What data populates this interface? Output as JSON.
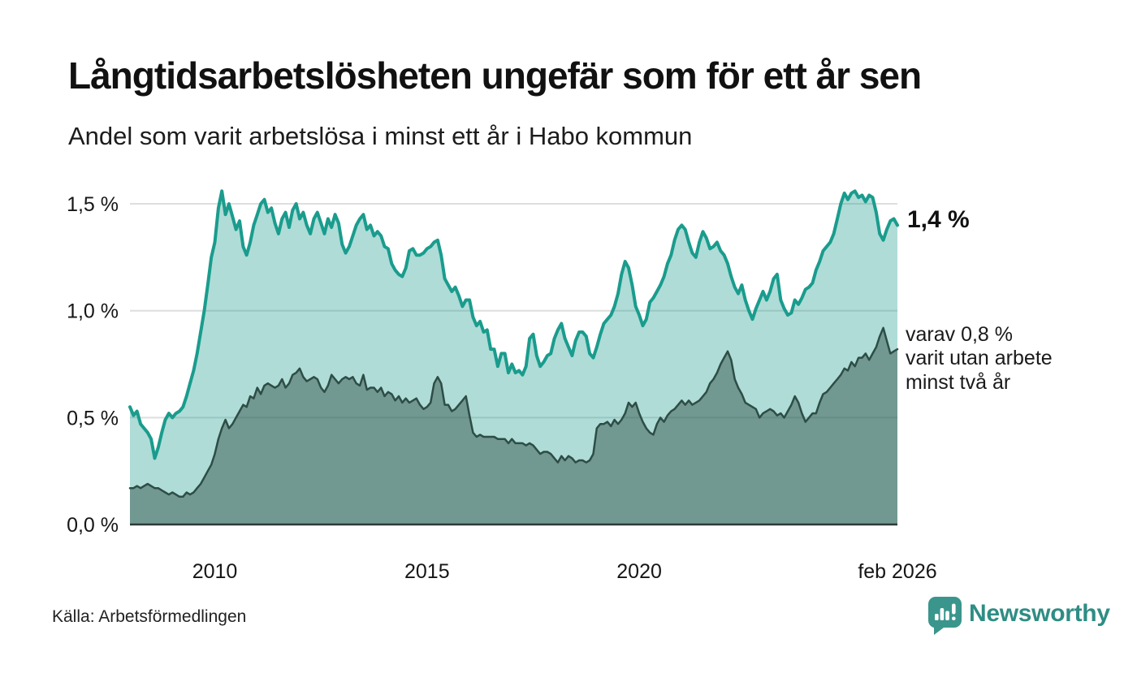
{
  "header": {
    "title": "Långtidsarbetslösheten ungefär som för ett år sen",
    "subtitle": "Andel som varit arbetslösa i minst ett år i Habo kommun"
  },
  "annotations": {
    "latest_total_label": "1,4 %",
    "latest_sub_line1": "varav 0,8 %",
    "latest_sub_line2": "varit utan arbete",
    "latest_sub_line3": "minst två år"
  },
  "footer": {
    "source": "Källa: Arbetsförmedlingen",
    "brand_name": "Newsworthy",
    "brand_logo_icon": "speech-bubble-bar-chart-exclamation"
  },
  "colors": {
    "background": "#ffffff",
    "gridline": "#dedede",
    "axis": "#2c3a35",
    "tick_label": "#161616",
    "line_one_year": "#1a9c8d",
    "fill_one_year": "rgba(26,156,141,0.35)",
    "line_two_years": "#2d4d46",
    "fill_two_years": "rgba(45,77,70,0.48)",
    "brand_teal": "#2e8d84",
    "logo_mark_teal": "#3a968c"
  },
  "chart_data": {
    "type": "area",
    "title": "Långtidsarbetslösheten ungefär som för ett år sen",
    "subtitle": "Andel som varit arbetslösa i minst ett år i Habo kommun",
    "x_start": "2008-01",
    "x_end": "2026-02",
    "x_frequency": "monthly",
    "ylim": [
      0,
      1.6
    ],
    "grid": true,
    "y_ticks": [
      {
        "label": "0,0 %",
        "value": 0.0
      },
      {
        "label": "0,5 %",
        "value": 0.5
      },
      {
        "label": "1,0 %",
        "value": 1.0
      },
      {
        "label": "1,5 %",
        "value": 1.5
      }
    ],
    "x_ticks": [
      {
        "label": "2010",
        "month_index": 24
      },
      {
        "label": "2015",
        "month_index": 84
      },
      {
        "label": "2020",
        "month_index": 144
      },
      {
        "label": "feb 2026",
        "month_index": 217
      }
    ],
    "latest": {
      "one_year_pct": 1.4,
      "two_years_pct": 0.8,
      "latest_month": "feb 2026"
    },
    "series": [
      {
        "name": "Andel arbetslösa minst ett år",
        "color": "#1a9c8d",
        "fill": "rgba(26,156,141,0.35)",
        "stroke_width": 4,
        "values": [
          0.55,
          0.51,
          0.53,
          0.47,
          0.45,
          0.43,
          0.4,
          0.31,
          0.36,
          0.43,
          0.49,
          0.52,
          0.5,
          0.52,
          0.53,
          0.55,
          0.6,
          0.66,
          0.72,
          0.8,
          0.9,
          1.0,
          1.12,
          1.25,
          1.32,
          1.48,
          1.56,
          1.45,
          1.5,
          1.44,
          1.38,
          1.42,
          1.3,
          1.26,
          1.32,
          1.4,
          1.45,
          1.5,
          1.52,
          1.46,
          1.48,
          1.41,
          1.36,
          1.43,
          1.46,
          1.39,
          1.47,
          1.5,
          1.43,
          1.46,
          1.4,
          1.36,
          1.43,
          1.46,
          1.41,
          1.36,
          1.43,
          1.39,
          1.45,
          1.41,
          1.31,
          1.27,
          1.3,
          1.35,
          1.4,
          1.43,
          1.45,
          1.38,
          1.4,
          1.35,
          1.37,
          1.35,
          1.3,
          1.29,
          1.22,
          1.19,
          1.17,
          1.16,
          1.2,
          1.28,
          1.29,
          1.26,
          1.26,
          1.27,
          1.29,
          1.3,
          1.32,
          1.33,
          1.26,
          1.15,
          1.12,
          1.09,
          1.11,
          1.07,
          1.02,
          1.05,
          1.05,
          0.97,
          0.93,
          0.95,
          0.9,
          0.91,
          0.82,
          0.82,
          0.74,
          0.8,
          0.8,
          0.71,
          0.75,
          0.71,
          0.72,
          0.7,
          0.74,
          0.87,
          0.89,
          0.79,
          0.74,
          0.76,
          0.79,
          0.8,
          0.87,
          0.91,
          0.94,
          0.87,
          0.83,
          0.79,
          0.86,
          0.9,
          0.9,
          0.88,
          0.8,
          0.78,
          0.83,
          0.89,
          0.94,
          0.96,
          0.98,
          1.02,
          1.08,
          1.17,
          1.23,
          1.2,
          1.12,
          1.02,
          0.98,
          0.93,
          0.96,
          1.04,
          1.06,
          1.09,
          1.12,
          1.16,
          1.22,
          1.26,
          1.33,
          1.38,
          1.4,
          1.38,
          1.32,
          1.27,
          1.25,
          1.32,
          1.37,
          1.34,
          1.29,
          1.3,
          1.32,
          1.28,
          1.26,
          1.22,
          1.16,
          1.11,
          1.08,
          1.12,
          1.05,
          1.0,
          0.96,
          1.01,
          1.05,
          1.09,
          1.05,
          1.09,
          1.15,
          1.17,
          1.05,
          1.01,
          0.98,
          0.99,
          1.05,
          1.03,
          1.06,
          1.1,
          1.11,
          1.13,
          1.19,
          1.23,
          1.28,
          1.3,
          1.32,
          1.36,
          1.43,
          1.5,
          1.55,
          1.52,
          1.55,
          1.56,
          1.53,
          1.54,
          1.51,
          1.54,
          1.53,
          1.46,
          1.36,
          1.33,
          1.38,
          1.42,
          1.43,
          1.4
        ]
      },
      {
        "name": "varav utan arbete minst två år",
        "color": "#2d4d46",
        "fill": "rgba(45,77,70,0.48)",
        "stroke_width": 2.5,
        "values": [
          0.17,
          0.17,
          0.18,
          0.17,
          0.18,
          0.19,
          0.18,
          0.17,
          0.17,
          0.16,
          0.15,
          0.14,
          0.15,
          0.14,
          0.13,
          0.13,
          0.15,
          0.14,
          0.15,
          0.17,
          0.19,
          0.22,
          0.25,
          0.28,
          0.33,
          0.4,
          0.45,
          0.49,
          0.45,
          0.47,
          0.5,
          0.53,
          0.56,
          0.55,
          0.6,
          0.59,
          0.64,
          0.61,
          0.65,
          0.66,
          0.65,
          0.64,
          0.65,
          0.68,
          0.64,
          0.66,
          0.7,
          0.71,
          0.73,
          0.69,
          0.67,
          0.68,
          0.69,
          0.68,
          0.64,
          0.62,
          0.65,
          0.7,
          0.68,
          0.66,
          0.68,
          0.69,
          0.68,
          0.69,
          0.66,
          0.65,
          0.7,
          0.63,
          0.64,
          0.64,
          0.62,
          0.64,
          0.6,
          0.62,
          0.61,
          0.58,
          0.6,
          0.57,
          0.59,
          0.57,
          0.58,
          0.59,
          0.56,
          0.54,
          0.55,
          0.57,
          0.66,
          0.69,
          0.66,
          0.56,
          0.56,
          0.53,
          0.54,
          0.56,
          0.58,
          0.6,
          0.51,
          0.43,
          0.41,
          0.42,
          0.41,
          0.41,
          0.41,
          0.41,
          0.4,
          0.4,
          0.4,
          0.38,
          0.4,
          0.38,
          0.38,
          0.38,
          0.37,
          0.38,
          0.37,
          0.35,
          0.33,
          0.34,
          0.34,
          0.33,
          0.31,
          0.29,
          0.32,
          0.3,
          0.32,
          0.31,
          0.29,
          0.3,
          0.3,
          0.29,
          0.3,
          0.33,
          0.45,
          0.47,
          0.47,
          0.48,
          0.46,
          0.49,
          0.47,
          0.49,
          0.52,
          0.57,
          0.55,
          0.57,
          0.52,
          0.48,
          0.45,
          0.43,
          0.42,
          0.47,
          0.5,
          0.48,
          0.51,
          0.53,
          0.54,
          0.56,
          0.58,
          0.56,
          0.58,
          0.56,
          0.57,
          0.58,
          0.6,
          0.62,
          0.66,
          0.68,
          0.71,
          0.75,
          0.78,
          0.81,
          0.77,
          0.68,
          0.64,
          0.61,
          0.57,
          0.56,
          0.55,
          0.54,
          0.5,
          0.52,
          0.53,
          0.54,
          0.53,
          0.51,
          0.52,
          0.5,
          0.53,
          0.56,
          0.6,
          0.57,
          0.52,
          0.48,
          0.5,
          0.52,
          0.52,
          0.57,
          0.61,
          0.62,
          0.64,
          0.66,
          0.68,
          0.7,
          0.73,
          0.72,
          0.76,
          0.74,
          0.78,
          0.78,
          0.8,
          0.77,
          0.8,
          0.83,
          0.88,
          0.92,
          0.86,
          0.8,
          0.81,
          0.82
        ]
      }
    ]
  }
}
